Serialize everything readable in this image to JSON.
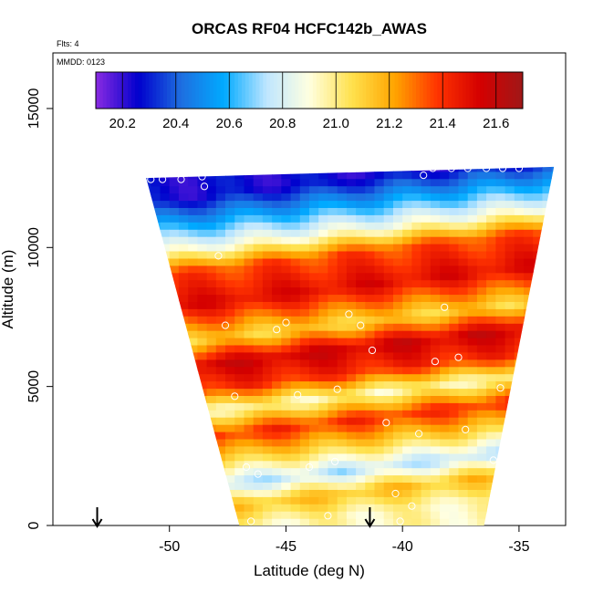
{
  "chart_data": {
    "type": "heatmap",
    "title": "ORCAS RF04 HCFC142b_AWAS",
    "subtitle_flights": "Flts: 4",
    "subtitle_date": "MMDD: 0123",
    "xlabel": "Latitude (deg N)",
    "ylabel": "Altitude (m)",
    "xlim": [
      -55,
      -33
    ],
    "ylim": [
      0,
      17000
    ],
    "x_ticks": [
      -50,
      -45,
      -40,
      -35
    ],
    "x_tick_labels": [
      "-50",
      "-45",
      "-40",
      "-35"
    ],
    "y_ticks": [
      0,
      5000,
      10000,
      15000
    ],
    "y_tick_labels": [
      "0",
      "5000",
      "10000",
      "15000"
    ],
    "colorbar": {
      "range": [
        20.1,
        21.7
      ],
      "ticks": [
        20.2,
        20.4,
        20.6,
        20.8,
        21.0,
        21.2,
        21.4,
        21.6
      ],
      "tick_labels": [
        "20.2",
        "20.4",
        "20.6",
        "20.8",
        "21.0",
        "21.2",
        "21.4",
        "21.6"
      ],
      "colors": [
        "#8a2be2",
        "#0000cd",
        "#1e6fe0",
        "#00aaff",
        "#bfe6ff",
        "#ffffe0",
        "#ffe14d",
        "#ffa500",
        "#ff3300",
        "#d40000",
        "#a01818"
      ]
    },
    "field_extent": {
      "top_left": [
        -51,
        12500
      ],
      "top_right": [
        -33.5,
        12900
      ],
      "bottom_left": [
        -47,
        0
      ],
      "bottom_right": [
        -36.5,
        0
      ]
    },
    "field_bands": [
      {
        "alt": 12400,
        "value": 20.25
      },
      {
        "alt": 11500,
        "value": 20.55
      },
      {
        "alt": 10500,
        "value": 20.9
      },
      {
        "alt": 9700,
        "value": 21.35
      },
      {
        "alt": 8500,
        "value": 21.5
      },
      {
        "alt": 7200,
        "value": 21.1
      },
      {
        "alt": 6300,
        "value": 21.55
      },
      {
        "alt": 5400,
        "value": 21.4
      },
      {
        "alt": 4600,
        "value": 20.95
      },
      {
        "alt": 3700,
        "value": 21.4
      },
      {
        "alt": 2800,
        "value": 21.1
      },
      {
        "alt": 1900,
        "value": 20.75
      },
      {
        "alt": 1100,
        "value": 21.15
      },
      {
        "alt": 300,
        "value": 20.95
      }
    ],
    "samples": [
      {
        "lat": -50.8,
        "alt": 12450
      },
      {
        "lat": -50.3,
        "alt": 12450
      },
      {
        "lat": -49.5,
        "alt": 12450
      },
      {
        "lat": -48.6,
        "alt": 12550
      },
      {
        "lat": -48.5,
        "alt": 12200
      },
      {
        "lat": -38.7,
        "alt": 12850
      },
      {
        "lat": -37.9,
        "alt": 12850
      },
      {
        "lat": -37.2,
        "alt": 12850
      },
      {
        "lat": -36.4,
        "alt": 12850
      },
      {
        "lat": -35.7,
        "alt": 12850
      },
      {
        "lat": -35.0,
        "alt": 12850
      },
      {
        "lat": -39.1,
        "alt": 12600
      },
      {
        "lat": -47.9,
        "alt": 9700
      },
      {
        "lat": -38.2,
        "alt": 7850
      },
      {
        "lat": -42.3,
        "alt": 7600
      },
      {
        "lat": -45.0,
        "alt": 7300
      },
      {
        "lat": -41.8,
        "alt": 7200
      },
      {
        "lat": -47.6,
        "alt": 7200
      },
      {
        "lat": -45.4,
        "alt": 7050
      },
      {
        "lat": -41.3,
        "alt": 6300
      },
      {
        "lat": -37.6,
        "alt": 6050
      },
      {
        "lat": -38.6,
        "alt": 5900
      },
      {
        "lat": -35.8,
        "alt": 4950
      },
      {
        "lat": -42.8,
        "alt": 4900
      },
      {
        "lat": -44.5,
        "alt": 4700
      },
      {
        "lat": -47.2,
        "alt": 4650
      },
      {
        "lat": -40.7,
        "alt": 3700
      },
      {
        "lat": -37.3,
        "alt": 3450
      },
      {
        "lat": -39.3,
        "alt": 3300
      },
      {
        "lat": -36.1,
        "alt": 2350
      },
      {
        "lat": -42.9,
        "alt": 2300
      },
      {
        "lat": -46.7,
        "alt": 2100
      },
      {
        "lat": -44.0,
        "alt": 2100
      },
      {
        "lat": -46.2,
        "alt": 1850
      },
      {
        "lat": -40.3,
        "alt": 1150
      },
      {
        "lat": -39.6,
        "alt": 700
      },
      {
        "lat": -43.2,
        "alt": 350
      },
      {
        "lat": -40.1,
        "alt": 150
      },
      {
        "lat": -46.5,
        "alt": 150
      }
    ],
    "arrows": [
      {
        "lat": -53.1
      },
      {
        "lat": -41.4
      }
    ]
  }
}
